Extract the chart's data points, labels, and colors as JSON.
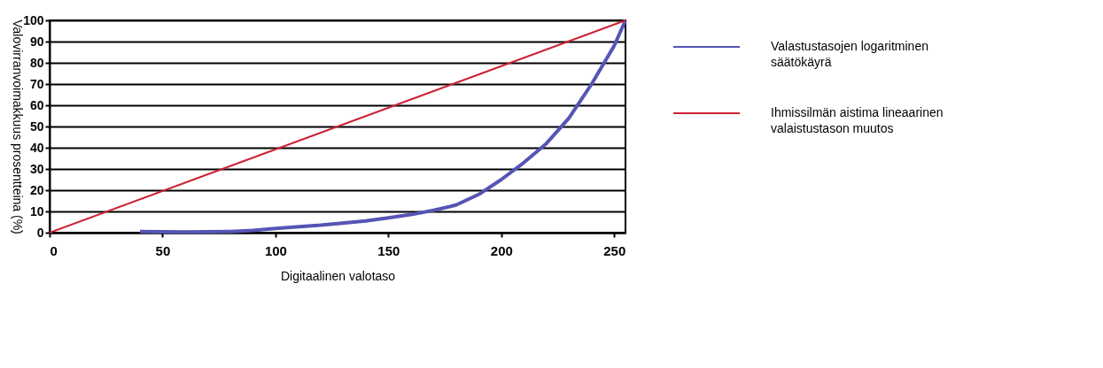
{
  "chart_data": {
    "type": "line",
    "xlabel": "Digitaalinen valotaso",
    "ylabel": "Valovirranvoimakkuus prosentteina (%)",
    "xlim": [
      0,
      255
    ],
    "xticks": [
      0,
      50,
      100,
      150,
      200,
      250
    ],
    "ylim": [
      0,
      100
    ],
    "yticks": [
      0,
      10,
      20,
      30,
      40,
      50,
      60,
      70,
      80,
      90,
      100
    ],
    "grid": "y",
    "legend": "right",
    "line_style": "solid",
    "marker": "none",
    "series": [
      {
        "name": "Valastustasojen logaritminen säätökäyrä",
        "color": "#5555b5",
        "x": [
          40,
          60,
          80,
          90,
          100,
          120,
          140,
          150,
          160,
          170,
          180,
          190,
          200,
          210,
          220,
          230,
          240,
          250,
          255
        ],
        "values": [
          0.5,
          0.3,
          0.5,
          1,
          2,
          3.5,
          5.5,
          7,
          8.5,
          10.5,
          13,
          18,
          25,
          33,
          42,
          54,
          70,
          88,
          100
        ]
      },
      {
        "name": "Ihmissilmän aistima lineaarinen valaistustason muutos",
        "color": "#cc2233",
        "x": [
          0,
          255
        ],
        "values": [
          0,
          100
        ]
      }
    ]
  }
}
